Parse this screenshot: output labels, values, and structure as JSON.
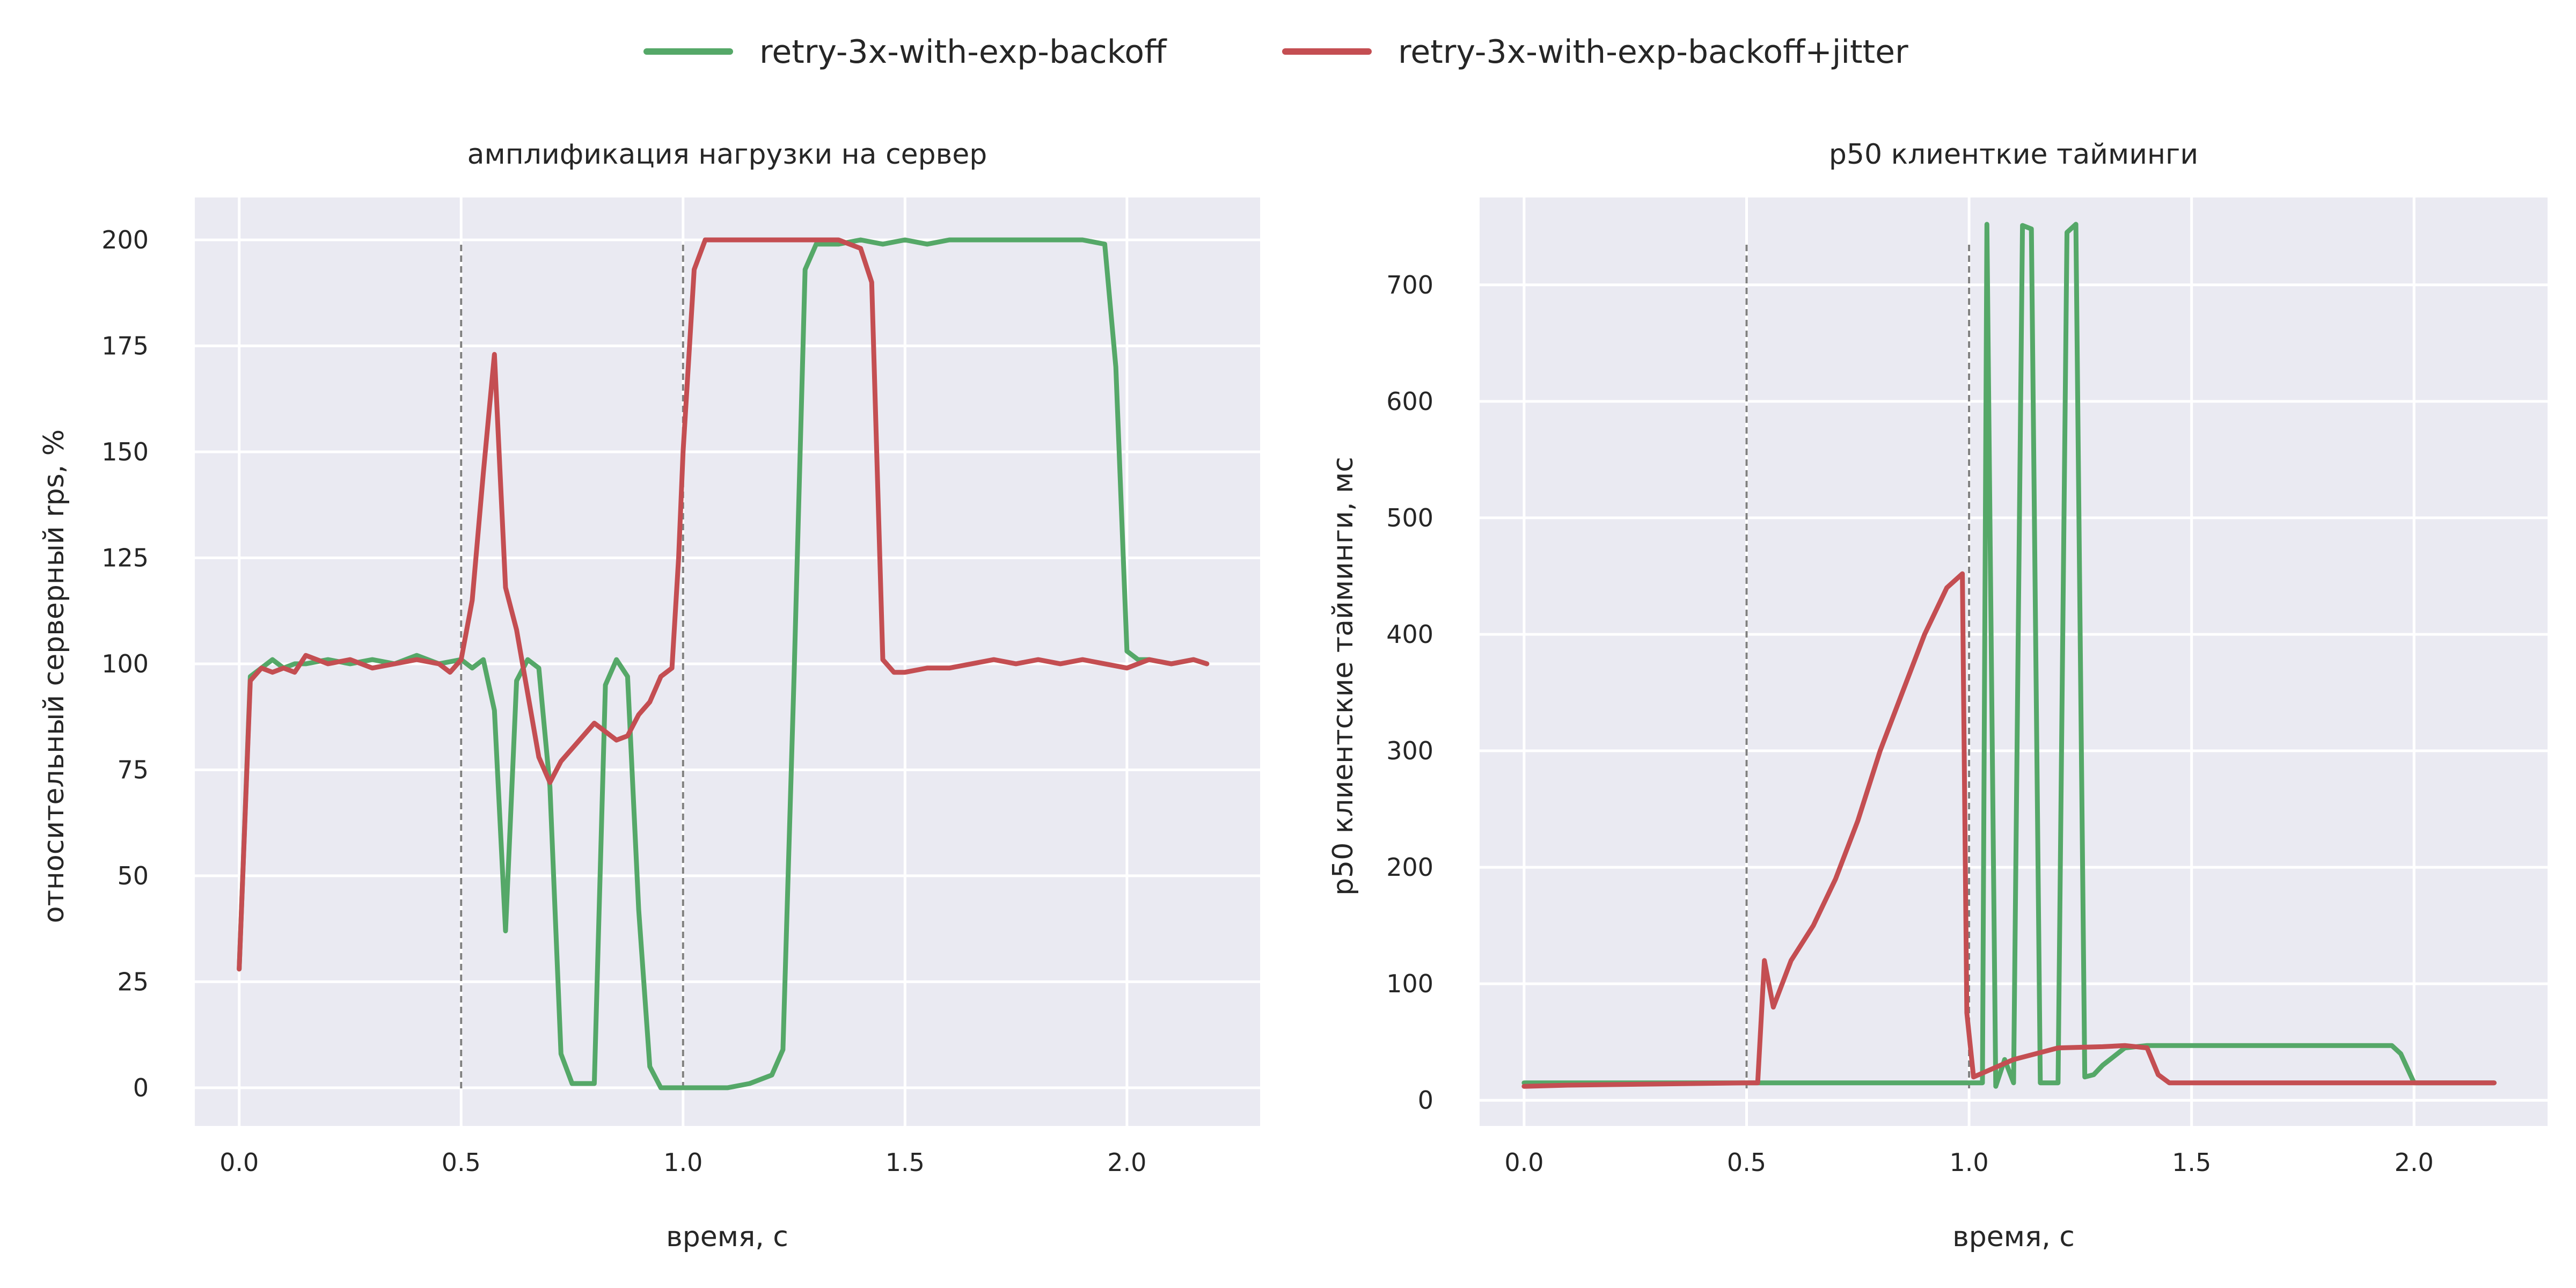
{
  "legend": [
    {
      "name": "retry-3x-with-exp-backoff",
      "color": "#55a868"
    },
    {
      "name": "retry-3x-with-exp-backoff+jitter",
      "color": "#c44e52"
    }
  ],
  "style": {
    "background": "#eaeaf2",
    "grid": "#ffffff",
    "vline": "#808080"
  },
  "chart_data": [
    {
      "type": "line",
      "title": "амплификация нагрузки на сервер",
      "xlabel": "время, с",
      "ylabel": "относительный серверный rps, %",
      "xlim": [
        -0.1,
        2.3
      ],
      "ylim": [
        -9,
        210
      ],
      "xticks": [
        0.0,
        0.5,
        1.0,
        1.5,
        2.0
      ],
      "xtick_labels": [
        "0.0",
        "0.5",
        "1.0",
        "1.5",
        "2.0"
      ],
      "yticks": [
        0,
        25,
        50,
        75,
        100,
        125,
        150,
        175,
        200
      ],
      "ytick_labels": [
        "0",
        "25",
        "50",
        "75",
        "100",
        "125",
        "150",
        "175",
        "200"
      ],
      "grid": true,
      "vlines": [
        0.5,
        1.0
      ],
      "series": [
        {
          "name": "retry-3x-with-exp-backoff",
          "color": "#55a868",
          "x": [
            0.0,
            0.025,
            0.05,
            0.075,
            0.1,
            0.125,
            0.15,
            0.2,
            0.25,
            0.3,
            0.35,
            0.4,
            0.45,
            0.5,
            0.525,
            0.55,
            0.575,
            0.6,
            0.625,
            0.65,
            0.675,
            0.7,
            0.725,
            0.75,
            0.8,
            0.825,
            0.85,
            0.875,
            0.9,
            0.925,
            0.95,
            0.975,
            1.0,
            1.05,
            1.1,
            1.15,
            1.2,
            1.225,
            1.25,
            1.275,
            1.3,
            1.35,
            1.4,
            1.45,
            1.5,
            1.55,
            1.6,
            1.65,
            1.7,
            1.75,
            1.8,
            1.85,
            1.9,
            1.95,
            1.975,
            2.0,
            2.025,
            2.05,
            2.1,
            2.15,
            2.18
          ],
          "y": [
            28,
            97,
            99,
            101,
            99,
            100,
            100,
            101,
            100,
            101,
            100,
            102,
            100,
            101,
            99,
            101,
            89,
            37,
            96,
            101,
            99,
            71,
            8,
            1,
            1,
            95,
            101,
            97,
            42,
            5,
            0,
            0,
            0,
            0,
            0,
            1,
            3,
            9,
            97,
            193,
            199,
            199,
            200,
            199,
            200,
            199,
            200,
            200,
            200,
            200,
            200,
            200,
            200,
            199,
            170,
            103,
            101,
            101,
            100,
            101,
            100
          ]
        },
        {
          "name": "retry-3x-with-exp-backoff+jitter",
          "color": "#c44e52",
          "x": [
            0.0,
            0.025,
            0.05,
            0.075,
            0.1,
            0.125,
            0.15,
            0.2,
            0.25,
            0.3,
            0.35,
            0.4,
            0.45,
            0.475,
            0.5,
            0.525,
            0.55,
            0.575,
            0.6,
            0.625,
            0.65,
            0.675,
            0.7,
            0.725,
            0.75,
            0.8,
            0.825,
            0.85,
            0.875,
            0.9,
            0.925,
            0.95,
            0.975,
            0.99,
            1.0,
            1.025,
            1.05,
            1.075,
            1.1,
            1.2,
            1.25,
            1.3,
            1.35,
            1.4,
            1.425,
            1.45,
            1.475,
            1.5,
            1.55,
            1.6,
            1.65,
            1.7,
            1.75,
            1.8,
            1.85,
            1.9,
            1.95,
            2.0,
            2.05,
            2.1,
            2.15,
            2.18
          ],
          "y": [
            28,
            96,
            99,
            98,
            99,
            98,
            102,
            100,
            101,
            99,
            100,
            101,
            100,
            98,
            101,
            115,
            145,
            173,
            118,
            108,
            93,
            78,
            72,
            77,
            80,
            86,
            84,
            82,
            83,
            88,
            91,
            97,
            99,
            125,
            150,
            193,
            200,
            200,
            200,
            200,
            200,
            200,
            200,
            198,
            190,
            101,
            98,
            98,
            99,
            99,
            100,
            101,
            100,
            101,
            100,
            101,
            100,
            99,
            101,
            100,
            101,
            100
          ]
        }
      ]
    },
    {
      "type": "line",
      "title": "p50 клиенткие тайминги",
      "xlabel": "время, с",
      "ylabel": "p50 клиентские тайминги, мс",
      "xlim": [
        -0.1,
        2.3
      ],
      "ylim": [
        -22,
        775
      ],
      "xticks": [
        0.0,
        0.5,
        1.0,
        1.5,
        2.0
      ],
      "xtick_labels": [
        "0.0",
        "0.5",
        "1.0",
        "1.5",
        "2.0"
      ],
      "yticks": [
        0,
        100,
        200,
        300,
        400,
        500,
        600,
        700
      ],
      "ytick_labels": [
        "0",
        "100",
        "200",
        "300",
        "400",
        "500",
        "600",
        "700"
      ],
      "grid": true,
      "vlines": [
        0.5,
        1.0
      ],
      "series": [
        {
          "name": "retry-3x-with-exp-backoff",
          "color": "#55a868",
          "x": [
            0.0,
            0.1,
            0.3,
            0.5,
            0.7,
            0.9,
            1.0,
            1.01,
            1.03,
            1.04,
            1.06,
            1.08,
            1.1,
            1.12,
            1.14,
            1.16,
            1.18,
            1.2,
            1.22,
            1.24,
            1.26,
            1.28,
            1.3,
            1.35,
            1.4,
            1.5,
            1.6,
            1.7,
            1.8,
            1.9,
            1.95,
            1.97,
            2.0,
            2.05,
            2.1,
            2.18
          ],
          "y": [
            15,
            15,
            15,
            15,
            15,
            15,
            15,
            15,
            15,
            752,
            12,
            35,
            15,
            751,
            748,
            15,
            15,
            15,
            745,
            752,
            20,
            22,
            30,
            45,
            47,
            47,
            47,
            47,
            47,
            47,
            47,
            40,
            15,
            15,
            15,
            15
          ]
        },
        {
          "name": "retry-3x-with-exp-backoff+jitter",
          "color": "#c44e52",
          "x": [
            0.0,
            0.1,
            0.3,
            0.5,
            0.525,
            0.54,
            0.56,
            0.6,
            0.65,
            0.7,
            0.75,
            0.8,
            0.85,
            0.9,
            0.95,
            0.985,
            0.995,
            1.01,
            1.1,
            1.2,
            1.3,
            1.35,
            1.4,
            1.425,
            1.45,
            1.5,
            1.6,
            1.8,
            2.0,
            2.1,
            2.18
          ],
          "y": [
            12,
            13,
            14,
            15,
            15,
            120,
            80,
            120,
            150,
            190,
            240,
            300,
            350,
            400,
            440,
            452,
            75,
            20,
            35,
            45,
            46,
            47,
            45,
            22,
            15,
            15,
            15,
            15,
            15,
            15,
            15
          ]
        }
      ]
    }
  ]
}
